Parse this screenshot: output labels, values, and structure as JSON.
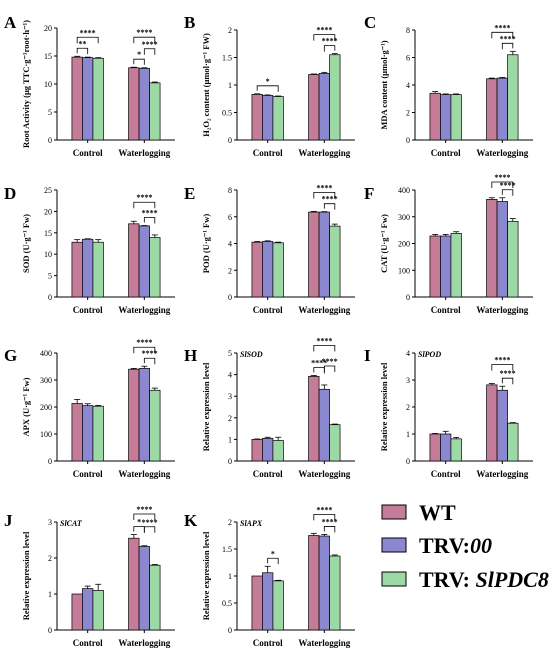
{
  "legend": {
    "items": [
      {
        "label": "WT",
        "italic_suffix": "",
        "color": "#c47c98"
      },
      {
        "label": "TRV:",
        "italic_suffix": "00",
        "color": "#8c88d0"
      },
      {
        "label": "TRV: ",
        "italic_suffix": "SlPDC8",
        "color": "#9cd9a4"
      }
    ]
  },
  "chart_data": [
    {
      "letter": "A",
      "type": "bar",
      "ylabel": "Root Activity (μg TTC·g⁻¹root·h⁻¹)",
      "ylim": [
        0,
        20
      ],
      "yticks": [
        0,
        5,
        10,
        15,
        20
      ],
      "categories": [
        "Control",
        "Waterlogging"
      ],
      "series": [
        {
          "values": [
            14.8,
            12.9
          ],
          "errors": [
            0.15,
            0.1
          ]
        },
        {
          "values": [
            14.7,
            12.8
          ],
          "errors": [
            0.1,
            0.1
          ]
        },
        {
          "values": [
            14.6,
            10.2
          ],
          "errors": [
            0.1,
            0.15
          ]
        }
      ],
      "significance": [
        {
          "group": 0,
          "from": 0,
          "to": 1,
          "label": "**",
          "level": 0
        },
        {
          "group": 0,
          "from": 0,
          "to": 2,
          "label": "****",
          "level": 1
        },
        {
          "group": 1,
          "from": 0,
          "to": 1,
          "label": "*",
          "level": 0
        },
        {
          "group": 1,
          "from": 1,
          "to": 2,
          "label": "****",
          "level": 1
        },
        {
          "group": 1,
          "from": 0,
          "to": 2,
          "label": "****",
          "level": 2
        }
      ]
    },
    {
      "letter": "B",
      "type": "bar",
      "ylabel": "H₂O₂ content (μmol·g⁻¹ FW)",
      "ylim": [
        0,
        2.0
      ],
      "yticks": [
        0.0,
        0.5,
        1.0,
        1.5,
        2.0
      ],
      "categories": [
        "Control",
        "Waterlogging"
      ],
      "series": [
        {
          "values": [
            0.83,
            1.19
          ],
          "errors": [
            0.01,
            0.01
          ]
        },
        {
          "values": [
            0.81,
            1.21
          ],
          "errors": [
            0.01,
            0.02
          ]
        },
        {
          "values": [
            0.79,
            1.55
          ],
          "errors": [
            0.01,
            0.02
          ]
        }
      ],
      "significance": [
        {
          "group": 0,
          "from": 0,
          "to": 2,
          "label": "*",
          "level": 0
        },
        {
          "group": 1,
          "from": 1,
          "to": 2,
          "label": "****",
          "level": 0
        },
        {
          "group": 1,
          "from": 0,
          "to": 2,
          "label": "****",
          "level": 1
        }
      ]
    },
    {
      "letter": "C",
      "type": "bar",
      "ylabel": "MDA content (μmol·g⁻¹)",
      "ylim": [
        0,
        8
      ],
      "yticks": [
        0,
        2,
        4,
        6,
        8
      ],
      "categories": [
        "Control",
        "Waterlogging"
      ],
      "series": [
        {
          "values": [
            3.4,
            4.45
          ],
          "errors": [
            0.12,
            0.05
          ]
        },
        {
          "values": [
            3.3,
            4.5
          ],
          "errors": [
            0.05,
            0.05
          ]
        },
        {
          "values": [
            3.3,
            6.2
          ],
          "errors": [
            0.05,
            0.25
          ]
        }
      ],
      "significance": [
        {
          "group": 1,
          "from": 1,
          "to": 2,
          "label": "****",
          "level": 0
        },
        {
          "group": 1,
          "from": 0,
          "to": 2,
          "label": "****",
          "level": 1
        }
      ]
    },
    {
      "letter": "D",
      "type": "bar",
      "ylabel": "SOD (U·g⁻¹ Fw)",
      "ylim": [
        0,
        25
      ],
      "yticks": [
        0,
        5,
        10,
        15,
        20,
        25
      ],
      "categories": [
        "Control",
        "Waterlogging"
      ],
      "series": [
        {
          "values": [
            12.8,
            17.1
          ],
          "errors": [
            0.6,
            0.6
          ]
        },
        {
          "values": [
            13.5,
            16.6
          ],
          "errors": [
            0.1,
            0.1
          ]
        },
        {
          "values": [
            12.8,
            13.9
          ],
          "errors": [
            0.6,
            0.6
          ]
        }
      ],
      "significance": [
        {
          "group": 1,
          "from": 1,
          "to": 2,
          "label": "****",
          "level": 0
        },
        {
          "group": 1,
          "from": 0,
          "to": 2,
          "label": "****",
          "level": 1
        }
      ]
    },
    {
      "letter": "E",
      "type": "bar",
      "ylabel": "POD (U·g⁻¹ Fw)",
      "ylim": [
        0,
        8
      ],
      "yticks": [
        0,
        2,
        4,
        6,
        8
      ],
      "categories": [
        "Control",
        "Waterlogging"
      ],
      "series": [
        {
          "values": [
            4.1,
            6.35
          ],
          "errors": [
            0.05,
            0.05
          ]
        },
        {
          "values": [
            4.15,
            6.35
          ],
          "errors": [
            0.05,
            0.03
          ]
        },
        {
          "values": [
            4.05,
            5.3
          ],
          "errors": [
            0.05,
            0.15
          ]
        }
      ],
      "significance": [
        {
          "group": 1,
          "from": 1,
          "to": 2,
          "label": "****",
          "level": 0
        },
        {
          "group": 1,
          "from": 0,
          "to": 2,
          "label": "****",
          "level": 1
        }
      ]
    },
    {
      "letter": "F",
      "type": "bar",
      "ylabel": "CAT (U·g⁻¹ Fw)",
      "ylim": [
        0,
        400
      ],
      "yticks": [
        0,
        100,
        200,
        300,
        400
      ],
      "categories": [
        "Control",
        "Waterlogging"
      ],
      "series": [
        {
          "values": [
            228,
            365
          ],
          "errors": [
            6,
            6
          ]
        },
        {
          "values": [
            228,
            357
          ],
          "errors": [
            6,
            14
          ]
        },
        {
          "values": [
            238,
            283
          ],
          "errors": [
            6,
            10
          ]
        }
      ],
      "significance": [
        {
          "group": 1,
          "from": 1,
          "to": 2,
          "label": "****",
          "level": 0
        },
        {
          "group": 1,
          "from": 0,
          "to": 2,
          "label": "****",
          "level": 1
        }
      ]
    },
    {
      "letter": "G",
      "type": "bar",
      "ylabel": "APX (U·g⁻¹ Fw)",
      "ylim": [
        0,
        400
      ],
      "yticks": [
        0,
        100,
        200,
        300,
        400
      ],
      "categories": [
        "Control",
        "Waterlogging"
      ],
      "series": [
        {
          "values": [
            213,
            340
          ],
          "errors": [
            15,
            3
          ]
        },
        {
          "values": [
            205,
            343
          ],
          "errors": [
            7,
            8
          ]
        },
        {
          "values": [
            203,
            262
          ],
          "errors": [
            3,
            8
          ]
        }
      ],
      "significance": [
        {
          "group": 1,
          "from": 1,
          "to": 2,
          "label": "****",
          "level": 0
        },
        {
          "group": 1,
          "from": 0,
          "to": 2,
          "label": "****",
          "level": 1
        }
      ]
    },
    {
      "letter": "H",
      "type": "bar",
      "gene": "SlSOD",
      "ylabel": "Relative expression level",
      "ylim": [
        0,
        5
      ],
      "yticks": [
        0,
        1,
        2,
        3,
        4,
        5
      ],
      "categories": [
        "Control",
        "Waterlogging"
      ],
      "series": [
        {
          "values": [
            1.0,
            3.92
          ],
          "errors": [
            0.02,
            0.04
          ]
        },
        {
          "values": [
            1.05,
            3.32
          ],
          "errors": [
            0.05,
            0.2
          ]
        },
        {
          "values": [
            0.95,
            1.68
          ],
          "errors": [
            0.15,
            0.03
          ]
        }
      ],
      "significance": [
        {
          "group": 1,
          "from": 0,
          "to": 1,
          "label": "****",
          "level": 0
        },
        {
          "group": 1,
          "from": 1,
          "to": 2,
          "label": "****",
          "level": 1
        },
        {
          "group": 1,
          "from": 0,
          "to": 2,
          "label": "****",
          "level": 2
        }
      ]
    },
    {
      "letter": "I",
      "type": "bar",
      "gene": "SlPOD",
      "ylabel": "Relative expression level",
      "ylim": [
        0,
        4
      ],
      "yticks": [
        0,
        1,
        2,
        3,
        4
      ],
      "categories": [
        "Control",
        "Waterlogging"
      ],
      "series": [
        {
          "values": [
            1.0,
            2.82
          ],
          "errors": [
            0.02,
            0.05
          ]
        },
        {
          "values": [
            1.0,
            2.62
          ],
          "errors": [
            0.1,
            0.15
          ]
        },
        {
          "values": [
            0.82,
            1.4
          ],
          "errors": [
            0.05,
            0.02
          ]
        }
      ],
      "significance": [
        {
          "group": 1,
          "from": 1,
          "to": 2,
          "label": "****",
          "level": 0
        },
        {
          "group": 1,
          "from": 0,
          "to": 2,
          "label": "****",
          "level": 1
        }
      ]
    },
    {
      "letter": "J",
      "type": "bar",
      "gene": "SlCAT",
      "ylabel": "Relative expression level",
      "ylim": [
        0,
        3
      ],
      "yticks": [
        0,
        1,
        2,
        3
      ],
      "categories": [
        "Control",
        "Waterlogging"
      ],
      "series": [
        {
          "values": [
            1.0,
            2.55
          ],
          "errors": [
            0.0,
            0.1
          ]
        },
        {
          "values": [
            1.15,
            2.32
          ],
          "errors": [
            0.07,
            0.02
          ]
        },
        {
          "values": [
            1.1,
            1.8
          ],
          "errors": [
            0.17,
            0.02
          ]
        }
      ],
      "significance": [
        {
          "group": 1,
          "from": 0,
          "to": 1,
          "label": "*",
          "level": 0
        },
        {
          "group": 1,
          "from": 1,
          "to": 2,
          "label": "****",
          "level": 1
        },
        {
          "group": 1,
          "from": 0,
          "to": 2,
          "label": "****",
          "level": 2
        }
      ]
    },
    {
      "letter": "K",
      "type": "bar",
      "gene": "SlAPX",
      "ylabel": "Relative expression level",
      "ylim": [
        0,
        2.0
      ],
      "yticks": [
        0.0,
        0.5,
        1.0,
        1.5,
        2.0
      ],
      "categories": [
        "Control",
        "Waterlogging"
      ],
      "series": [
        {
          "values": [
            1.0,
            1.75
          ],
          "errors": [
            0.0,
            0.04
          ]
        },
        {
          "values": [
            1.06,
            1.74
          ],
          "errors": [
            0.12,
            0.03
          ]
        },
        {
          "values": [
            0.91,
            1.37
          ],
          "errors": [
            0.01,
            0.02
          ]
        }
      ],
      "significance": [
        {
          "group": 0,
          "from": 1,
          "to": 2,
          "label": "*",
          "level": 0
        },
        {
          "group": 1,
          "from": 1,
          "to": 2,
          "label": "****",
          "level": 0
        },
        {
          "group": 1,
          "from": 0,
          "to": 2,
          "label": "****",
          "level": 1
        }
      ]
    }
  ]
}
